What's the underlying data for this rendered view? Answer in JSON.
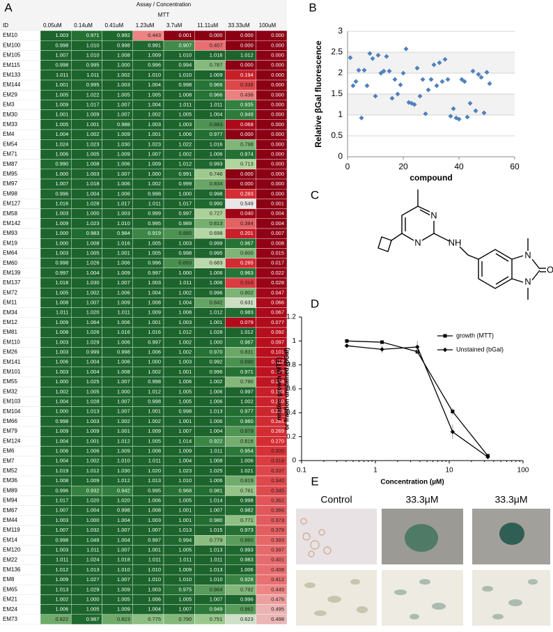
{
  "panel_labels": [
    "A",
    "B",
    "C",
    "D",
    "E"
  ],
  "table": {
    "title": "Assay / Concentration",
    "assay": "MTT",
    "columns": [
      "ID",
      "0.05uM",
      "0.14uM",
      "0.41uM",
      "1.23uM",
      "3.7uM",
      "11.11uM",
      "33.33uM",
      "100uM"
    ],
    "rows": [
      [
        "EM10",
        "1.003",
        "0.971",
        "0.992",
        "0.443",
        "0.001",
        "0.000",
        "0.000",
        "0.000"
      ],
      [
        "EM100",
        "0.998",
        "1.010",
        "0.998",
        "0.991",
        "0.907",
        "0.407",
        "0.000",
        "0.000"
      ],
      [
        "EM105",
        "1.007",
        "1.010",
        "1.008",
        "1.009",
        "1.010",
        "1.016",
        "1.012",
        "0.000"
      ],
      [
        "EM115",
        "0.998",
        "0.995",
        "1.000",
        "0.996",
        "0.994",
        "0.787",
        "0.000",
        "0.000"
      ],
      [
        "EM133",
        "1.011",
        "1.011",
        "1.002",
        "1.010",
        "1.010",
        "1.009",
        "0.194",
        "0.000"
      ],
      [
        "EM144",
        "1.001",
        "0.995",
        "1.003",
        "1.004",
        "0.998",
        "0.966",
        "0.338",
        "0.000"
      ],
      [
        "EM29",
        "1.005",
        "1.022",
        "1.005",
        "1.005",
        "1.008",
        "0.966",
        "0.436",
        "0.000"
      ],
      [
        "EM3",
        "1.009",
        "1.017",
        "1.007",
        "1.004",
        "1.011",
        "1.011",
        "0.935",
        "0.000"
      ],
      [
        "EM30",
        "1.001",
        "1.009",
        "1.007",
        "1.002",
        "1.005",
        "1.004",
        "0.949",
        "0.000"
      ],
      [
        "EM33",
        "1.005",
        "1.001",
        "0.988",
        "1.003",
        "1.003",
        "0.883",
        "0.068",
        "0.000"
      ],
      [
        "EM4",
        "1.004",
        "1.002",
        "1.009",
        "1.001",
        "1.006",
        "0.977",
        "0.000",
        "0.000"
      ],
      [
        "EM54",
        "1.024",
        "1.023",
        "1.030",
        "1.023",
        "1.022",
        "1.016",
        "0.798",
        "0.000"
      ],
      [
        "EM71",
        "1.006",
        "1.005",
        "1.009",
        "1.007",
        "1.002",
        "1.006",
        "0.974",
        "0.000"
      ],
      [
        "EM87",
        "0.990",
        "1.008",
        "1.006",
        "1.009",
        "1.012",
        "0.993",
        "0.713",
        "0.000"
      ],
      [
        "EM95",
        "1.000",
        "1.003",
        "1.007",
        "1.000",
        "0.991",
        "0.746",
        "0.000",
        "0.000"
      ],
      [
        "EM97",
        "1.007",
        "1.018",
        "1.006",
        "1.002",
        "0.999",
        "0.834",
        "0.000",
        "0.000"
      ],
      [
        "EM98",
        "0.996",
        "1.004",
        "1.006",
        "0.998",
        "1.000",
        "0.998",
        "0.283",
        "0.000"
      ],
      [
        "EM127",
        "1.016",
        "1.028",
        "1.017",
        "1.011",
        "1.017",
        "0.990",
        "0.549",
        "0.001"
      ],
      [
        "EM58",
        "1.003",
        "1.000",
        "1.003",
        "0.999",
        "0.997",
        "0.727",
        "0.040",
        "0.004"
      ],
      [
        "EM142",
        "1.009",
        "1.023",
        "1.010",
        "0.995",
        "0.989",
        "0.813",
        "0.384",
        "0.004"
      ],
      [
        "EM93",
        "1.000",
        "0.983",
        "0.984",
        "0.919",
        "0.885",
        "0.698",
        "0.201",
        "0.007"
      ],
      [
        "EM19",
        "1.000",
        "1.008",
        "1.016",
        "1.005",
        "1.003",
        "0.999",
        "0.967",
        "0.008"
      ],
      [
        "EM64",
        "1.003",
        "1.005",
        "1.001",
        "1.005",
        "0.998",
        "0.995",
        "0.800",
        "0.015"
      ],
      [
        "EM60",
        "0.998",
        "1.026",
        "1.006",
        "0.996",
        "0.893",
        "0.683",
        "0.265",
        "0.017"
      ],
      [
        "EM139",
        "0.997",
        "1.004",
        "1.009",
        "0.997",
        "1.000",
        "1.006",
        "0.963",
        "0.022"
      ],
      [
        "EM137",
        "1.018",
        "1.030",
        "1.007",
        "1.003",
        "1.011",
        "1.006",
        "0.318",
        "0.028"
      ],
      [
        "EM72",
        "1.005",
        "1.002",
        "1.006",
        "1.004",
        "1.002",
        "0.996",
        "0.802",
        "0.047"
      ],
      [
        "EM11",
        "1.008",
        "1.007",
        "1.009",
        "1.008",
        "1.004",
        "0.842",
        "0.631",
        "0.066"
      ],
      [
        "EM34",
        "1.011",
        "1.020",
        "1.011",
        "1.009",
        "1.008",
        "1.012",
        "0.983",
        "0.067"
      ],
      [
        "EM12",
        "1.009",
        "1.064",
        "1.006",
        "1.001",
        "1.003",
        "1.001",
        "0.079",
        "0.077"
      ],
      [
        "EM81",
        "1.008",
        "1.026",
        "1.016",
        "1.016",
        "1.012",
        "1.028",
        "1.012",
        "0.092"
      ],
      [
        "EM110",
        "1.003",
        "1.029",
        "1.006",
        "0.997",
        "1.002",
        "1.000",
        "0.967",
        "0.097"
      ],
      [
        "EM26",
        "1.003",
        "0.999",
        "0.998",
        "1.006",
        "1.002",
        "0.970",
        "0.831",
        "0.101"
      ],
      [
        "EM141",
        "1.006",
        "1.004",
        "1.006",
        "1.000",
        "1.003",
        "0.992",
        "0.890",
        "0.112"
      ],
      [
        "EM101",
        "1.003",
        "1.004",
        "1.008",
        "1.002",
        "1.001",
        "0.996",
        "0.971",
        "0.122"
      ],
      [
        "EM55",
        "1.000",
        "1.025",
        "1.007",
        "0.998",
        "1.006",
        "1.002",
        "0.790",
        "0.138"
      ],
      [
        "EM32",
        "1.002",
        "1.005",
        "1.000",
        "1.012",
        "1.005",
        "1.006",
        "0.997",
        "0.193"
      ],
      [
        "EM103",
        "1.004",
        "1.028",
        "1.007",
        "0.998",
        "1.005",
        "1.006",
        "1.002",
        "0.210"
      ],
      [
        "EM104",
        "1.000",
        "1.013",
        "1.007",
        "1.001",
        "0.998",
        "1.013",
        "0.977",
        "0.223"
      ],
      [
        "EM66",
        "0.998",
        "1.003",
        "1.002",
        "1.002",
        "1.001",
        "1.006",
        "0.960",
        "0.261"
      ],
      [
        "EM79",
        "1.009",
        "1.009",
        "1.001",
        "1.009",
        "1.007",
        "1.004",
        "0.879",
        "0.269"
      ],
      [
        "EM124",
        "1.004",
        "1.001",
        "1.012",
        "1.005",
        "1.014",
        "0.922",
        "0.816",
        "0.270"
      ],
      [
        "EM6",
        "1.006",
        "1.006",
        "1.009",
        "1.008",
        "1.009",
        "1.011",
        "0.954",
        "0.300"
      ],
      [
        "EM7",
        "1.004",
        "1.002",
        "1.010",
        "1.011",
        "1.004",
        "1.008",
        "1.006",
        "0.318"
      ],
      [
        "EM52",
        "1.019",
        "1.012",
        "1.030",
        "1.020",
        "1.023",
        "1.025",
        "1.021",
        "0.337"
      ],
      [
        "EM36",
        "1.008",
        "1.009",
        "1.012",
        "1.013",
        "1.010",
        "1.006",
        "0.819",
        "0.340"
      ],
      [
        "EM89",
        "0.996",
        "0.932",
        "0.942",
        "0.995",
        "0.968",
        "0.981",
        "0.761",
        "0.345"
      ],
      [
        "EM94",
        "1.017",
        "1.020",
        "1.020",
        "1.006",
        "1.005",
        "1.014",
        "0.998",
        "0.362"
      ],
      [
        "EM67",
        "1.007",
        "1.004",
        "0.998",
        "1.008",
        "1.001",
        "1.007",
        "0.982",
        "0.366"
      ],
      [
        "EM44",
        "1.003",
        "1.000",
        "1.004",
        "1.003",
        "1.001",
        "0.980",
        "0.771",
        "0.373"
      ],
      [
        "EM119",
        "1.007",
        "1.032",
        "1.007",
        "1.007",
        "1.013",
        "1.015",
        "0.973",
        "0.378"
      ],
      [
        "EM14",
        "0.998",
        "1.049",
        "1.004",
        "0.997",
        "0.994",
        "0.779",
        "0.860",
        "0.393"
      ],
      [
        "EM120",
        "1.003",
        "1.011",
        "1.007",
        "1.001",
        "1.005",
        "1.013",
        "0.993",
        "0.397"
      ],
      [
        "EM22",
        "1.011",
        "1.024",
        "1.018",
        "1.011",
        "1.011",
        "1.011",
        "0.983",
        "0.401"
      ],
      [
        "EM136",
        "1.012",
        "1.013",
        "1.010",
        "1.010",
        "1.009",
        "1.013",
        "1.006",
        "0.408"
      ],
      [
        "EM8",
        "1.009",
        "1.027",
        "1.007",
        "1.010",
        "1.010",
        "1.010",
        "0.928",
        "0.412"
      ],
      [
        "EM65",
        "1.013",
        "1.029",
        "1.009",
        "1.003",
        "0.975",
        "0.864",
        "0.792",
        "0.449"
      ],
      [
        "EM21",
        "1.002",
        "1.000",
        "1.005",
        "1.006",
        "1.005",
        "1.007",
        "0.996",
        "0.476"
      ],
      [
        "EM24",
        "1.006",
        "1.005",
        "1.009",
        "1.004",
        "1.007",
        "0.949",
        "0.862",
        "0.495"
      ],
      [
        "EM73",
        "0.822",
        "0.987",
        "0.823",
        "0.775",
        "0.790",
        "0.751",
        "0.623",
        "0.498"
      ]
    ]
  },
  "chart_data": [
    {
      "type": "scatter",
      "ylabel": "Relative βGal fluorescence",
      "xlabel": "compound",
      "color": "#4f81bd",
      "x": [
        1,
        2,
        3,
        4,
        5,
        6,
        7,
        8,
        9,
        10,
        11,
        12,
        13,
        14,
        15,
        16,
        17,
        18,
        19,
        20,
        21,
        22,
        23,
        24,
        25,
        26,
        27,
        28,
        29,
        30,
        31,
        32,
        33,
        34,
        35,
        36,
        37,
        38,
        39,
        40,
        41,
        42,
        43,
        44,
        45,
        46,
        47,
        48,
        49,
        50,
        51
      ],
      "values": [
        2.37,
        1.7,
        1.8,
        2.07,
        0.93,
        2.07,
        1.7,
        2.47,
        2.35,
        1.45,
        2.43,
        2.0,
        2.05,
        2.4,
        2.05,
        1.4,
        1.85,
        1.5,
        1.72,
        2.0,
        2.58,
        1.3,
        1.28,
        1.25,
        2.12,
        1.45,
        1.85,
        1.03,
        1.6,
        1.85,
        2.2,
        1.7,
        2.25,
        1.8,
        2.33,
        1.85,
        0.97,
        1.15,
        0.93,
        0.9,
        1.85,
        1.8,
        0.95,
        1.28,
        2.05,
        1.1,
        1.97,
        1.9,
        1.05,
        2.02,
        1.75
      ],
      "xlim": [
        0,
        60
      ],
      "ylim": [
        0,
        3
      ],
      "xticks": [
        0,
        20,
        40,
        60
      ],
      "yticks": [
        0,
        0.5,
        1,
        1.5,
        2,
        2.5,
        3
      ],
      "grid": true
    },
    {
      "type": "line",
      "log_x": true,
      "xlabel": "Concentration (µM)",
      "ylabel": [
        "relative growth (MTT)",
        "or fraction unstained (βGal)"
      ],
      "x": [
        0.41,
        1.23,
        3.7,
        11.11,
        33.33
      ],
      "series": [
        {
          "name": "growth (MTT)",
          "color": "#000000",
          "marker": "square",
          "values": [
            1.0,
            0.99,
            0.91,
            0.41,
            0.04
          ],
          "errors": [
            0.01,
            0.01,
            0.02,
            0.03,
            0.01
          ]
        },
        {
          "name": "Unstained (bGal)",
          "color": "#000000",
          "marker": "diamond",
          "values": [
            0.96,
            0.93,
            0.95,
            0.24,
            0.03
          ],
          "errors": [
            0.02,
            0.03,
            0.05,
            0.06,
            0.01
          ]
        }
      ],
      "xlim": [
        0.1,
        100
      ],
      "ylim": [
        0,
        1.2
      ],
      "xticks": [
        0.1,
        1,
        10,
        100
      ],
      "yticks": [
        0,
        0.2,
        0.4,
        0.6,
        0.8,
        1,
        1.2
      ],
      "legend": "upper right"
    }
  ],
  "structure": {
    "atom_labels": [
      "N",
      "N",
      "NH",
      "N",
      "N",
      "O"
    ]
  },
  "images": {
    "labels": [
      "Control",
      "33.3μM",
      "33.3μM"
    ]
  }
}
